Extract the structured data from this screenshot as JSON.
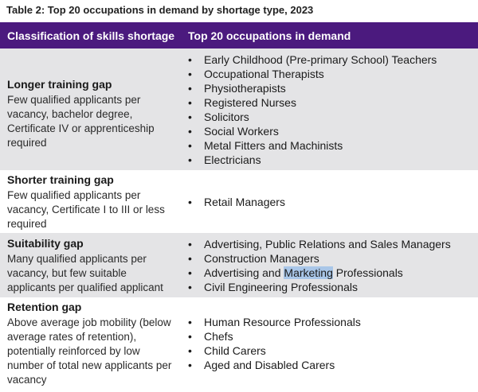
{
  "caption": "Table 2: Top 20 occupations in demand by shortage type, 2023",
  "header": {
    "col1": "Classification of skills shortage",
    "col2": "Top 20 occupations in demand"
  },
  "rows": [
    {
      "title": "Longer training gap",
      "description": "Few qualified applicants per vacancy, bachelor degree, Certificate IV or apprenticeship required",
      "occupations": [
        "Early Childhood (Pre-primary School) Teachers",
        "Occupational Therapists",
        "Physiotherapists",
        "Registered Nurses",
        "Solicitors",
        "Social Workers",
        "Metal Fitters and Machinists",
        "Electricians"
      ]
    },
    {
      "title": "Shorter training gap",
      "description": "Few qualified applicants per vacancy, Certificate I to III or less required",
      "occupations": [
        "Retail Managers"
      ]
    },
    {
      "title": "Suitability gap",
      "description": "Many qualified applicants per vacancy, but few suitable applicants per qualified applicant",
      "occupations": [
        "Advertising, Public Relations and Sales Managers",
        "Construction Managers",
        "Advertising and Marketing Professionals",
        "Civil Engineering Professionals"
      ]
    },
    {
      "title": "Retention gap",
      "description": "Above average job mobility (below average rates of retention), potentially reinforced by low number of total new applicants per vacancy",
      "occupations": [
        "Human Resource Professionals",
        "Chefs",
        "Child Carers",
        "Aged and Disabled Carers"
      ]
    }
  ],
  "highlighted_text": "Marketing",
  "bullet_glyph": "•",
  "colors": {
    "header_bg": "#4b1a7e",
    "shaded_row": "#e4e4e6",
    "selection": "#a9c6e8"
  }
}
